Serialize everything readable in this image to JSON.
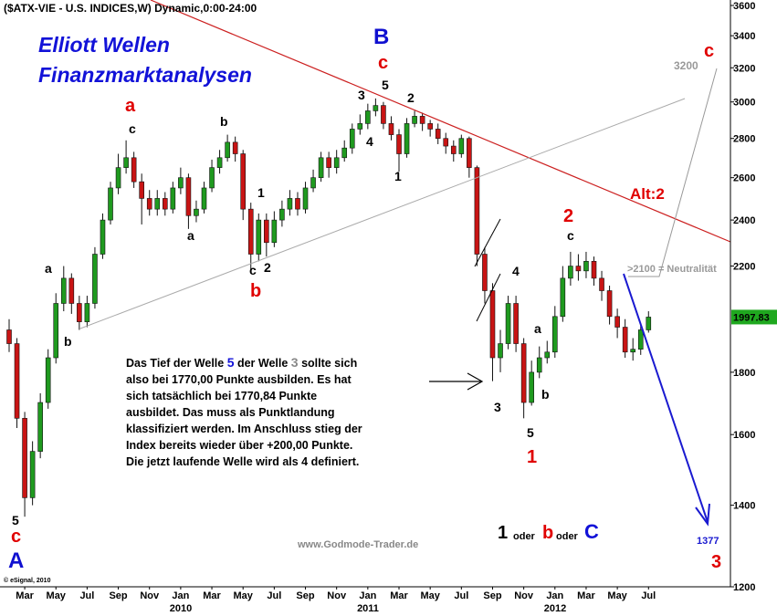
{
  "chart_data": {
    "type": "candlestick",
    "title": "($ATX-VIE - U.S. INDICES,W) Dynamic,0:00-24:00",
    "headline": [
      "Elliott Wellen",
      "Finanzmarktanalysen"
    ],
    "log_y": true,
    "ylim": [
      1200,
      3600
    ],
    "yticks": [
      1200,
      1400,
      1600,
      1800,
      2200,
      2400,
      2600,
      2800,
      3000,
      3200,
      3400,
      3600
    ],
    "up_color": "#1f9a1f",
    "down_color": "#c81414",
    "categories": [
      null,
      null,
      "Mar",
      null,
      null,
      null,
      "May",
      null,
      null,
      null,
      "Jul",
      null,
      null,
      null,
      "Sep",
      null,
      null,
      null,
      "Nov",
      null,
      null,
      null,
      "Jan",
      null,
      null,
      null,
      "Mar",
      null,
      null,
      null,
      "May",
      null,
      null,
      null,
      "Jul",
      null,
      null,
      null,
      "Sep",
      null,
      null,
      null,
      "Nov",
      null,
      null,
      null,
      "Jan",
      null,
      null,
      null,
      "Mar",
      null,
      null,
      null,
      "May",
      null,
      null,
      null,
      "Jul",
      null,
      null,
      null,
      "Sep",
      null,
      null,
      null,
      "Nov",
      null,
      null,
      null,
      "Jan",
      null,
      null,
      null,
      "Mar",
      null,
      null,
      null,
      "May",
      null,
      null,
      null,
      "Jul"
    ],
    "years": [
      "2010",
      "2011",
      "2012"
    ],
    "open": [
      1950,
      1900,
      1650,
      1420,
      1550,
      1700,
      1850,
      2050,
      2150,
      2050,
      1980,
      2050,
      2250,
      2400,
      2550,
      2650,
      2700,
      2580,
      2500,
      2450,
      2500,
      2450,
      2550,
      2600,
      2420,
      2450,
      2550,
      2650,
      2700,
      2780,
      2720,
      2450,
      2250,
      2400,
      2300,
      2400,
      2450,
      2500,
      2450,
      2550,
      2600,
      2700,
      2650,
      2700,
      2750,
      2850,
      2880,
      2950,
      2980,
      2880,
      2820,
      2720,
      2880,
      2920,
      2880,
      2850,
      2800,
      2760,
      2720,
      2800,
      2650,
      2250,
      2100,
      1850,
      1900,
      2050,
      1900,
      1700,
      1800,
      1850,
      1870,
      2000,
      2150,
      2200,
      2180,
      2220,
      2150,
      2100,
      2000,
      1960,
      1870,
      1880,
      1950
    ],
    "high": [
      1990,
      1920,
      1670,
      1580,
      1730,
      1880,
      2090,
      2200,
      2170,
      2080,
      2080,
      2280,
      2430,
      2580,
      2720,
      2790,
      2730,
      2620,
      2540,
      2540,
      2530,
      2580,
      2650,
      2620,
      2490,
      2580,
      2690,
      2740,
      2820,
      2810,
      2740,
      2480,
      2430,
      2430,
      2440,
      2490,
      2540,
      2530,
      2580,
      2640,
      2730,
      2730,
      2740,
      2790,
      2880,
      2930,
      2990,
      3020,
      3000,
      2920,
      2850,
      2910,
      2950,
      2940,
      2900,
      2880,
      2830,
      2790,
      2820,
      2810,
      2660,
      2280,
      2130,
      1950,
      2080,
      2080,
      1920,
      1840,
      1890,
      1910,
      2040,
      2200,
      2260,
      2250,
      2260,
      2240,
      2180,
      2120,
      2030,
      1990,
      1920,
      1970,
      2020
    ],
    "low": [
      1870,
      1620,
      1370,
      1400,
      1530,
      1680,
      1830,
      2020,
      2010,
      1950,
      1960,
      2030,
      2230,
      2380,
      2520,
      2620,
      2550,
      2380,
      2420,
      2420,
      2420,
      2430,
      2520,
      2360,
      2390,
      2430,
      2530,
      2620,
      2680,
      2680,
      2400,
      2180,
      2220,
      2240,
      2280,
      2370,
      2420,
      2420,
      2430,
      2530,
      2580,
      2600,
      2620,
      2680,
      2720,
      2820,
      2850,
      2920,
      2850,
      2790,
      2630,
      2700,
      2860,
      2840,
      2810,
      2770,
      2720,
      2680,
      2700,
      2600,
      2200,
      2050,
      1770,
      1800,
      1880,
      1870,
      1650,
      1690,
      1780,
      1830,
      1850,
      1980,
      2120,
      2140,
      2150,
      2120,
      2060,
      1970,
      1920,
      1850,
      1840,
      1860,
      1940
    ],
    "close": [
      1900,
      1650,
      1420,
      1550,
      1700,
      1850,
      2050,
      2150,
      2050,
      1980,
      2050,
      2250,
      2400,
      2550,
      2650,
      2700,
      2580,
      2500,
      2450,
      2500,
      2450,
      2550,
      2600,
      2420,
      2450,
      2550,
      2650,
      2700,
      2780,
      2720,
      2450,
      2250,
      2400,
      2300,
      2400,
      2450,
      2500,
      2450,
      2550,
      2600,
      2700,
      2650,
      2700,
      2750,
      2850,
      2880,
      2950,
      2980,
      2880,
      2820,
      2720,
      2880,
      2920,
      2880,
      2850,
      2800,
      2760,
      2720,
      2800,
      2650,
      2250,
      2100,
      1850,
      1900,
      2050,
      1900,
      1700,
      1800,
      1850,
      1870,
      2000,
      2150,
      2200,
      2180,
      2220,
      2150,
      2100,
      2000,
      1960,
      1870,
      1880,
      1950,
      1997.83
    ],
    "wave_labels": [
      "5",
      "c",
      "A",
      "a",
      "b",
      "a",
      "c",
      "a",
      "b",
      "1",
      "c",
      "2",
      "b",
      "B",
      "c",
      "3",
      "5",
      "2",
      "4",
      "1",
      "4",
      "a",
      "b",
      "3",
      "5",
      "1",
      "2",
      "c",
      "Alt:2",
      ">2100 = Neutralität",
      "3200",
      "c",
      "1377",
      "3",
      "1",
      "oder",
      "b",
      "oder",
      "C"
    ],
    "note_first_line": [
      "Das Tief der Welle ",
      "5",
      " der Welle ",
      "3",
      " sollte sich"
    ],
    "note_lines": [
      "also bei 1770,00 Punkte ausbilden. Es hat",
      "sich tatsächlich bei 1770,84 Punkte",
      "ausbildet. Das muss als Punktlandung",
      "klassifiziert werden. Im Anschluss stieg der",
      "Index bereits wieder über +200,00 Punkte.",
      "Die jetzt laufende Welle wird als 4 definiert."
    ],
    "source": "www.Godmode-Trader.de",
    "copyright": "© eSignal, 2010"
  }
}
